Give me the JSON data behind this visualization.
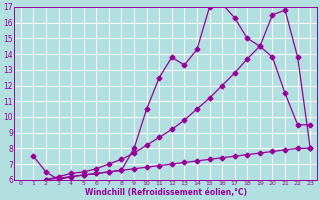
{
  "xlabel": "Windchill (Refroidissement éolien,°C)",
  "bg_color": "#b2e0e0",
  "grid_color": "#ffffff",
  "line_color": "#990099",
  "xlim": [
    -0.5,
    23.5
  ],
  "ylim": [
    6,
    17
  ],
  "xticks": [
    0,
    1,
    2,
    3,
    4,
    5,
    6,
    7,
    8,
    9,
    10,
    11,
    12,
    13,
    14,
    15,
    16,
    17,
    18,
    19,
    20,
    21,
    22,
    23
  ],
  "yticks": [
    6,
    7,
    8,
    9,
    10,
    11,
    12,
    13,
    14,
    15,
    16,
    17
  ],
  "line1_x": [
    1,
    2,
    3,
    4,
    5,
    6,
    7,
    8,
    9,
    10,
    11,
    12,
    13,
    14,
    15,
    16,
    17,
    18,
    19,
    20,
    21,
    22,
    23
  ],
  "line1_y": [
    7.5,
    6.5,
    6.0,
    6.2,
    6.3,
    6.4,
    6.5,
    6.6,
    8.0,
    10.5,
    12.5,
    13.8,
    13.3,
    14.3,
    17.0,
    17.2,
    16.3,
    15.0,
    14.5,
    13.8,
    11.5,
    9.5,
    9.5
  ],
  "line2_x": [
    2,
    3,
    4,
    5,
    6,
    7,
    8,
    9,
    10,
    11,
    12,
    13,
    14,
    15,
    16,
    17,
    18,
    19,
    20,
    21,
    22,
    23
  ],
  "line2_y": [
    6.0,
    6.2,
    6.4,
    6.5,
    6.7,
    7.0,
    7.3,
    7.7,
    8.2,
    8.7,
    9.2,
    9.8,
    10.5,
    11.2,
    12.0,
    12.8,
    13.7,
    14.5,
    16.5,
    16.8,
    13.8,
    8.0
  ],
  "line3_x": [
    2,
    3,
    4,
    5,
    6,
    7,
    8,
    9,
    10,
    11,
    12,
    13,
    14,
    15,
    16,
    17,
    18,
    19,
    20,
    21,
    22,
    23
  ],
  "line3_y": [
    6.0,
    6.1,
    6.2,
    6.3,
    6.4,
    6.5,
    6.6,
    6.7,
    6.8,
    6.9,
    7.0,
    7.1,
    7.2,
    7.3,
    7.4,
    7.5,
    7.6,
    7.7,
    7.8,
    7.9,
    8.0,
    8.0
  ]
}
